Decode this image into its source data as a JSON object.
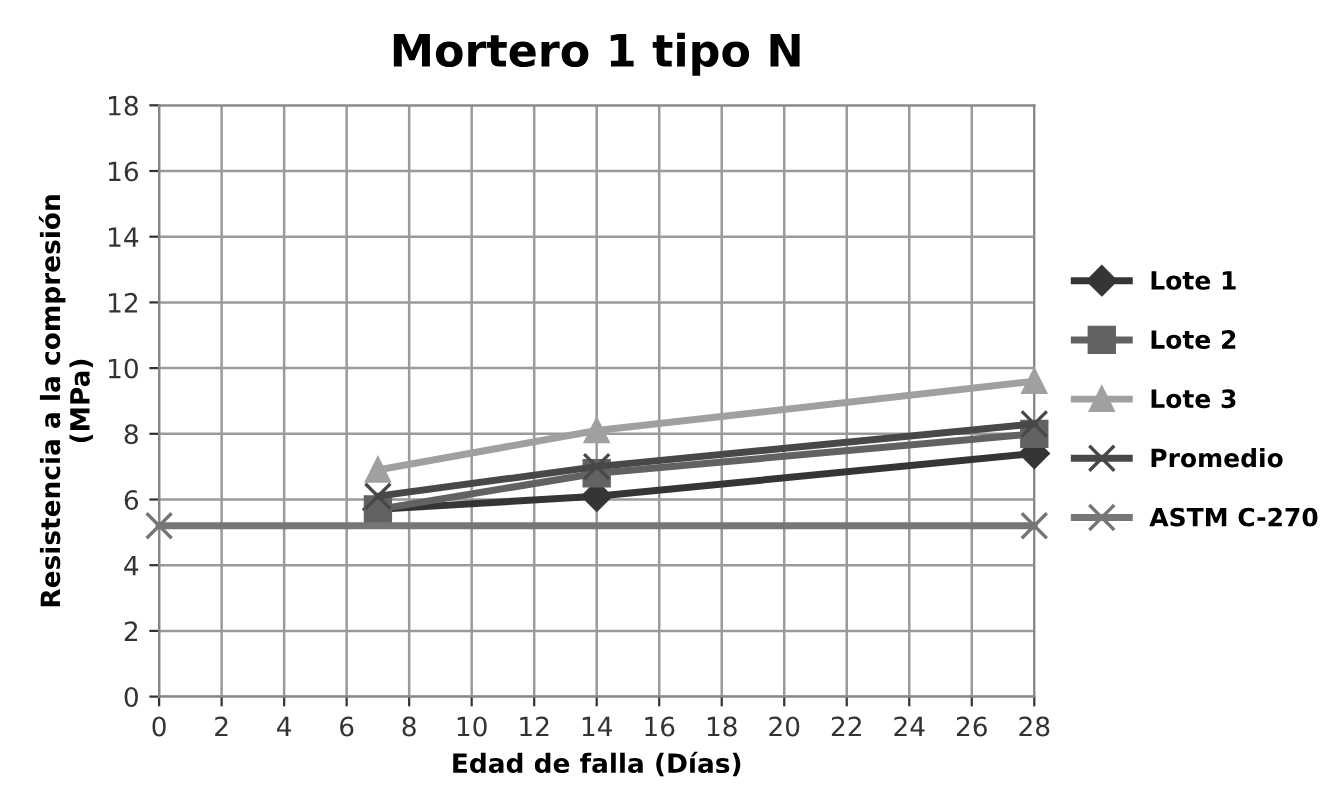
{
  "chart_data": {
    "type": "line",
    "title": "Mortero 1 tipo N",
    "xlabel": "Edad de falla (Días)",
    "ylabel": "Resistencia a la compresión\n(MPa)",
    "xlim": [
      0,
      28
    ],
    "xticks": [
      0,
      2,
      4,
      6,
      8,
      10,
      12,
      14,
      16,
      18,
      20,
      22,
      24,
      26,
      28
    ],
    "ylim": [
      0,
      18
    ],
    "yticks": [
      0,
      2,
      4,
      6,
      8,
      10,
      12,
      14,
      16,
      18
    ],
    "grid": true,
    "legend": "right",
    "series": [
      {
        "name": "Lote 1",
        "color": "#353535",
        "marker": "diamond",
        "x": [
          7,
          14,
          28
        ],
        "values": [
          5.7,
          6.1,
          7.4
        ]
      },
      {
        "name": "Lote 2",
        "color": "#626262",
        "marker": "square",
        "x": [
          7,
          14,
          28
        ],
        "values": [
          5.7,
          6.8,
          8.0
        ]
      },
      {
        "name": "Lote 3",
        "color": "#a0a0a0",
        "marker": "triangle",
        "x": [
          7,
          14,
          28
        ],
        "values": [
          6.9,
          8.1,
          9.6
        ]
      },
      {
        "name": "Promedio",
        "color": "#484848",
        "marker": "cross",
        "x": [
          7,
          14,
          28
        ],
        "values": [
          6.1,
          7.0,
          8.3
        ]
      },
      {
        "name": "ASTM C-270",
        "color": "#767676",
        "marker": "cross",
        "x": [
          0,
          28
        ],
        "values": [
          5.2,
          5.2
        ]
      }
    ]
  }
}
